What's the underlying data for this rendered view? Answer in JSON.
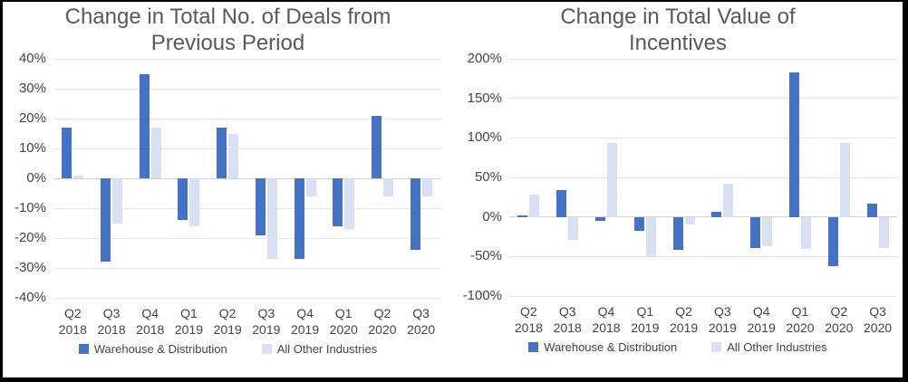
{
  "figure": {
    "background": "#ffffff",
    "frame_color": "#000000"
  },
  "colors": {
    "series1": "#4472c4",
    "series2": "#d8e1f3",
    "gridline": "#e2e5ea",
    "zero_line": "#cdd0d5",
    "title_text": "#595959",
    "tick_text": "#444444"
  },
  "legend": {
    "items": [
      {
        "label": "Warehouse & Distribution",
        "color": "#4472c4"
      },
      {
        "label": "All Other Industries",
        "color": "#d8e1f3"
      }
    ]
  },
  "chart_data": [
    {
      "type": "bar",
      "title": "Change in Total No. of Deals from Previous Period",
      "categories": [
        "Q2 2018",
        "Q3 2018",
        "Q4 2018",
        "Q1 2019",
        "Q2 2019",
        "Q3 2019",
        "Q4 2019",
        "Q1 2020",
        "Q2 2020",
        "Q3 2020"
      ],
      "series": [
        {
          "name": "Warehouse & Distribution",
          "values": [
            17,
            -28,
            35,
            -14,
            17,
            -19,
            -27,
            -16,
            21,
            -24
          ]
        },
        {
          "name": "All Other Industries",
          "values": [
            1,
            -15,
            17,
            -16,
            15,
            -27,
            -6,
            -17,
            -6,
            -6
          ]
        }
      ],
      "ylim": [
        -40,
        40
      ],
      "yticks": [
        40,
        30,
        20,
        10,
        0,
        -10,
        -20,
        -30,
        -40
      ],
      "ytick_suffix": "%",
      "grid": true,
      "legend_position": "bottom"
    },
    {
      "type": "bar",
      "title": "Change in Total Value of Incentives",
      "categories": [
        "Q2 2018",
        "Q3 2018",
        "Q4 2018",
        "Q1 2019",
        "Q2 2019",
        "Q3 2019",
        "Q4 2019",
        "Q1 2020",
        "Q2 2020",
        "Q3 2020"
      ],
      "series": [
        {
          "name": "Warehouse & Distribution",
          "values": [
            2,
            34,
            -5,
            -18,
            -42,
            6,
            -39,
            183,
            -62,
            17
          ]
        },
        {
          "name": "All Other Industries",
          "values": [
            28,
            -29,
            93,
            -51,
            -10,
            42,
            -37,
            -40,
            94,
            -39
          ]
        }
      ],
      "ylim": [
        -100,
        200
      ],
      "yticks": [
        200,
        150,
        100,
        50,
        0,
        -50,
        -100
      ],
      "ytick_suffix": "%",
      "grid": true,
      "legend_position": "bottom"
    }
  ]
}
